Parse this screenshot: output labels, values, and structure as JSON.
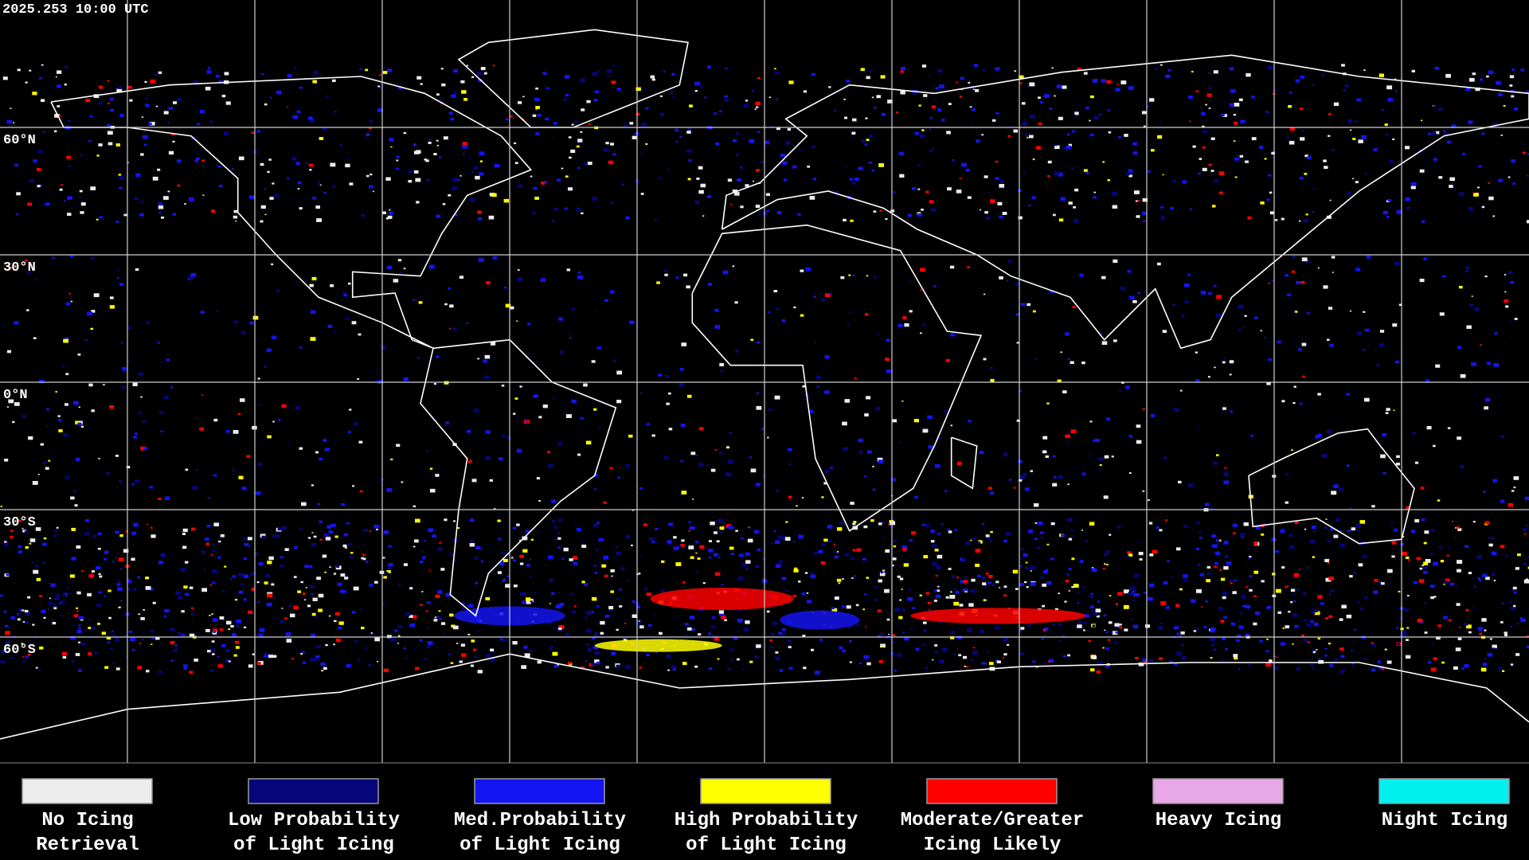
{
  "header": {
    "timestamp": "2025.253 10:00 UTC"
  },
  "lat_labels": [
    "60°N",
    "30°N",
    "0°N",
    "30°S",
    "60°S"
  ],
  "legend": [
    {
      "lines": [
        "No Icing",
        "Retrieval"
      ],
      "color": "#ececec"
    },
    {
      "lines": [
        "Low Probability",
        "of Light Icing"
      ],
      "color": "#06067a"
    },
    {
      "lines": [
        "Med.Probability",
        "of Light Icing"
      ],
      "color": "#1414f0"
    },
    {
      "lines": [
        "High Probability",
        "of Light Icing"
      ],
      "color": "#ffff00"
    },
    {
      "lines": [
        "Moderate/Greater",
        "Icing Likely"
      ],
      "color": "#ff0000"
    },
    {
      "lines": [
        "Heavy Icing"
      ],
      "color": "#e8a8e8"
    },
    {
      "lines": [
        "Night Icing"
      ],
      "color": "#00f0f0"
    }
  ]
}
